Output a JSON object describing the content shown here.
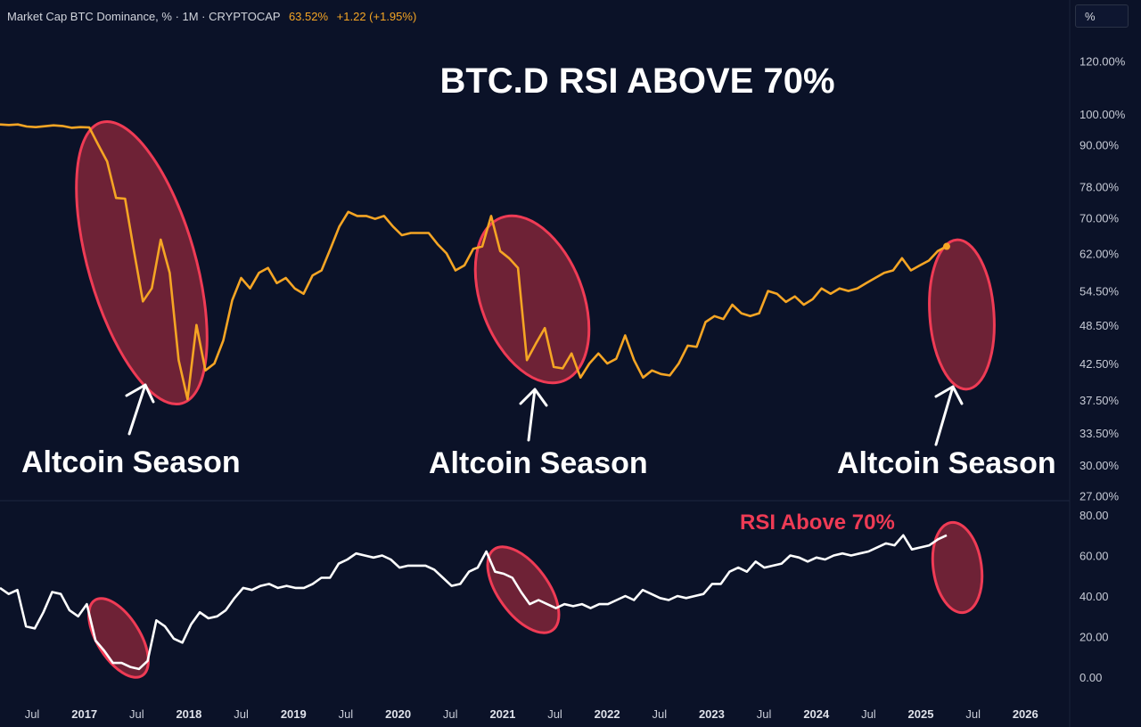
{
  "header": {
    "symbol": "Market Cap BTC Dominance, % · 1M · CRYPTOCAP",
    "last_value": "63.52%",
    "change": "+1.22 (+1.95%)"
  },
  "scale_button": "%",
  "colors": {
    "background": "#0b1228",
    "price_line": "#f5a524",
    "rsi_line": "#ffffff",
    "highlight": "#ef3b55"
  },
  "chart_data": [
    {
      "type": "line",
      "title": "BTC.D RSI ABOVE 70%",
      "y_ticks": [
        "120.00%",
        "100.00%",
        "90.00%",
        "78.00%",
        "70.00%",
        "62.00%",
        "54.50%",
        "48.50%",
        "42.50%",
        "37.50%",
        "33.50%",
        "30.00%",
        "27.00%"
      ],
      "y_tick_values": [
        120,
        100,
        90,
        78,
        70,
        62,
        54.5,
        48.5,
        42.5,
        37.5,
        33.5,
        30,
        27
      ],
      "y_scale": "log",
      "series": [
        {
          "values": [
            96.5,
            96.3,
            96.5,
            95.8,
            95.6,
            95.9,
            96.2,
            96.0,
            95.4,
            95.6,
            95.5,
            90,
            85,
            75,
            74.8,
            62.5,
            52.6,
            55,
            65,
            58,
            43,
            37.6,
            48.5,
            41.5,
            42.5,
            46,
            52.8,
            57,
            55,
            58,
            59,
            56,
            57,
            55,
            54,
            57.5,
            58.5,
            63,
            68,
            71.5,
            70.5,
            70.5,
            69.8,
            70.5,
            68,
            66,
            66.5,
            66.5,
            66.5,
            64,
            62,
            58.5,
            59.5,
            63,
            63.5,
            70.5,
            62.5,
            61,
            59,
            43,
            45.5,
            48,
            42,
            41.8,
            44,
            40.5,
            42.5,
            44,
            42.5,
            43.2,
            46.8,
            43,
            40.5,
            41.5,
            41,
            40.8,
            42.5,
            45.2,
            45,
            49,
            50,
            49.5,
            52,
            50.5,
            50,
            50.5,
            54.5,
            54,
            52.5,
            53.5,
            52,
            53,
            55,
            54,
            55,
            54.5,
            55,
            56,
            57,
            58,
            58.5,
            61,
            58.5,
            59.5,
            60.5,
            62.5,
            63.52
          ]
        }
      ],
      "annotations": [
        {
          "text": "Altcoin Season"
        },
        {
          "text": "Altcoin Season"
        },
        {
          "text": "Altcoin Season"
        }
      ],
      "grid": false
    },
    {
      "type": "line",
      "title": "",
      "y_ticks": [
        "80.00",
        "60.00",
        "40.00",
        "20.00",
        "0.00"
      ],
      "y_tick_values": [
        80,
        60,
        40,
        20,
        0
      ],
      "ylim": [
        0,
        80
      ],
      "series": [
        {
          "values": [
            44,
            41,
            43,
            25,
            24,
            32,
            42,
            41,
            33,
            30,
            36,
            18,
            13,
            7,
            7,
            5,
            4,
            8,
            28,
            25,
            19,
            17,
            26,
            32,
            29,
            30,
            33,
            39,
            44,
            43,
            45,
            46,
            44,
            45,
            44,
            44,
            46,
            49,
            49,
            56,
            58,
            61,
            60,
            59,
            60,
            58,
            54,
            55,
            55,
            55,
            53,
            49,
            45,
            46,
            52,
            54,
            62,
            52,
            51,
            49,
            42,
            36,
            38,
            36,
            34,
            36,
            35,
            36,
            34,
            36,
            36,
            38,
            40,
            38,
            43,
            41,
            39,
            38,
            40,
            39,
            40,
            41,
            46,
            46,
            52,
            54,
            52,
            57,
            54,
            55,
            56,
            60,
            59,
            57,
            59,
            58,
            60,
            61,
            60,
            61,
            62,
            64,
            66,
            65,
            70,
            63,
            64,
            65,
            68,
            70
          ]
        }
      ],
      "annotations": [
        {
          "text": "RSI Above 70%"
        }
      ]
    }
  ],
  "x_axis": {
    "labels": [
      "Jul",
      "2017",
      "Jul",
      "2018",
      "Jul",
      "2019",
      "Jul",
      "2020",
      "Jul",
      "2021",
      "Jul",
      "2022",
      "Jul",
      "2023",
      "Jul",
      "2024",
      "Jul",
      "2025",
      "Jul",
      "2026"
    ]
  }
}
